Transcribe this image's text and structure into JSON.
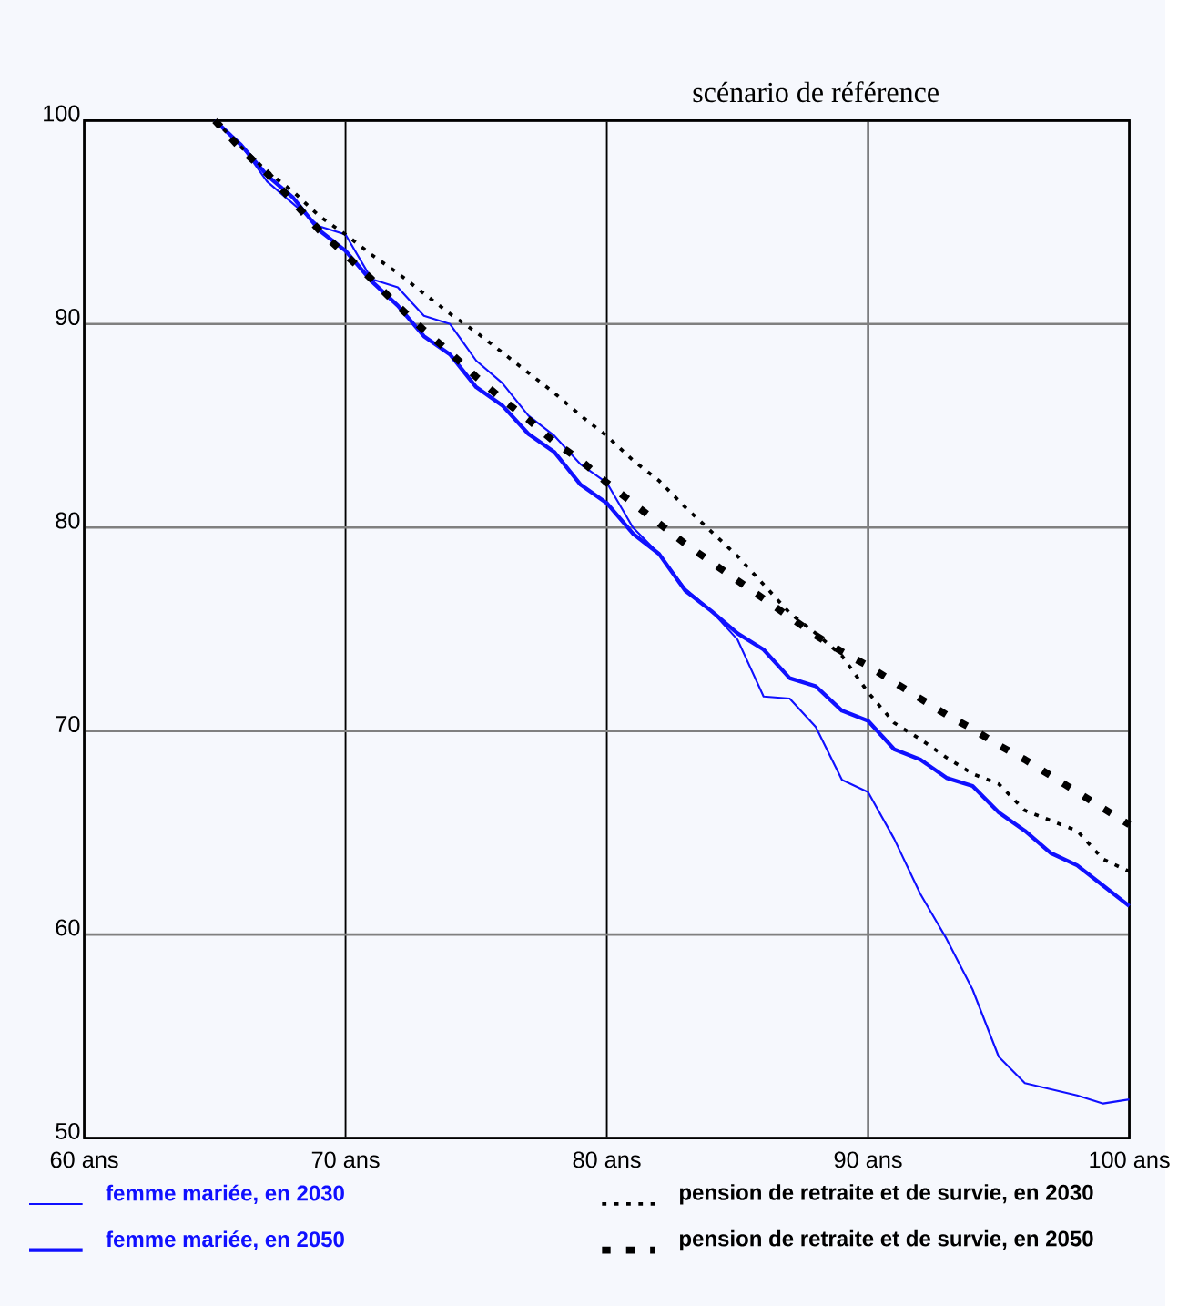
{
  "chart_data": {
    "type": "line",
    "title": "scénario de référence",
    "xlim": [
      60,
      100
    ],
    "ylim": [
      50,
      100
    ],
    "xticks": [
      {
        "value": 60,
        "label": "60 ans"
      },
      {
        "value": 70,
        "label": "70 ans"
      },
      {
        "value": 80,
        "label": "80 ans"
      },
      {
        "value": 90,
        "label": "90 ans"
      },
      {
        "value": 100,
        "label": "100 ans"
      }
    ],
    "yticks": [
      50,
      60,
      70,
      80,
      90,
      100
    ],
    "grid": true,
    "legend": "bottom",
    "marker": "none",
    "x": [
      65,
      66,
      67,
      68,
      69,
      70,
      71,
      72,
      73,
      74,
      75,
      76,
      77,
      78,
      79,
      80,
      81,
      82,
      83,
      84,
      85,
      86,
      87,
      88,
      89,
      90,
      91,
      92,
      93,
      94,
      95,
      96,
      97,
      98,
      99,
      100
    ],
    "series": [
      {
        "name": "femme mariée, en 2030",
        "color": "#1010ff",
        "line_style": "solid",
        "values": [
          100,
          98.8,
          97.0,
          95.9,
          94.8,
          94.4,
          92.2,
          91.8,
          90.4,
          90.0,
          88.2,
          87.1,
          85.5,
          84.5,
          83.1,
          82.2,
          80.0,
          78.7,
          77.0,
          75.9,
          74.5,
          71.7,
          71.6,
          70.2,
          67.6,
          67.0,
          64.7,
          62.0,
          59.8,
          57.3,
          54.0,
          52.7,
          52.4,
          52.1,
          51.7,
          51.9
        ]
      },
      {
        "name": "femme mariée, en 2050",
        "color": "#1010ff",
        "line_style": "solid",
        "values": [
          100,
          98.8,
          97.3,
          96.2,
          94.6,
          93.6,
          92.1,
          90.9,
          89.4,
          88.5,
          86.9,
          86.0,
          84.6,
          83.7,
          82.1,
          81.2,
          79.7,
          78.7,
          76.9,
          75.9,
          74.8,
          74.0,
          72.6,
          72.2,
          71.0,
          70.5,
          69.1,
          68.6,
          67.7,
          67.3,
          66.0,
          65.1,
          64.0,
          63.4,
          62.4,
          61.4
        ]
      },
      {
        "name": "pension de retraite et de survie, en 2030",
        "color": "#000000",
        "line_style": "dotted",
        "values": [
          100,
          98.7,
          97.5,
          96.5,
          95.3,
          94.4,
          93.4,
          92.5,
          91.5,
          90.5,
          89.6,
          88.6,
          87.6,
          86.6,
          85.5,
          84.5,
          83.3,
          82.3,
          81.0,
          79.8,
          78.6,
          77.2,
          75.8,
          74.8,
          73.7,
          71.9,
          70.4,
          69.6,
          68.7,
          67.9,
          67.4,
          66.1,
          65.6,
          65.1,
          63.7,
          63.1
        ]
      },
      {
        "name": "pension de retraite et de survie, en 2050",
        "color": "#000000",
        "line_style": "dotted",
        "values": [
          100,
          98.6,
          97.4,
          96.0,
          94.6,
          93.4,
          92.2,
          90.9,
          89.7,
          88.6,
          87.4,
          86.3,
          85.3,
          84.2,
          83.3,
          82.2,
          81.2,
          80.2,
          79.2,
          78.3,
          77.4,
          76.5,
          75.6,
          74.7,
          73.9,
          73.2,
          72.4,
          71.6,
          70.8,
          70.1,
          69.3,
          68.6,
          67.8,
          67.0,
          66.2,
          65.4
        ]
      }
    ]
  }
}
